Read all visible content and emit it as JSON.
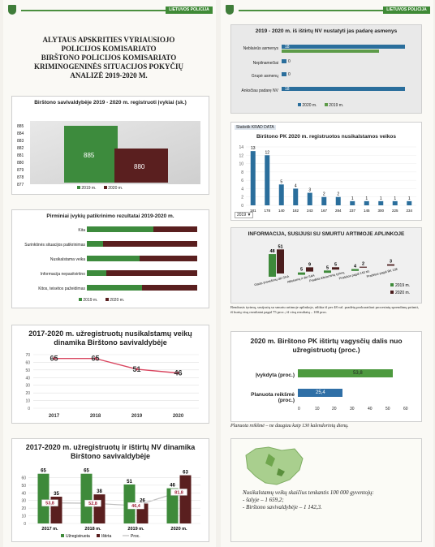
{
  "header": {
    "brand": "LIETUVOS POLICIJA"
  },
  "doc": {
    "title_lines": [
      "ALYTAUS APSKRITIES VYRIAUSIOJO",
      "POLICIJOS KOMISARIATO",
      "BIRŠTONO POLICIJOS KOMISARIATO",
      "KRIMINOGENINĖS SITUACIJOS POKYČIŲ",
      "ANALIZĖ 2019-2020 M."
    ]
  },
  "chart1": {
    "title": "Birštono savivaldybėje 2019 - 2020 m. registruoti įvykiai (sk.)",
    "yticks": [
      "885",
      "884",
      "883",
      "882",
      "881",
      "880",
      "879",
      "878",
      "877"
    ],
    "values": [
      885,
      880
    ],
    "labels": [
      "885",
      "880"
    ],
    "legend": [
      "2019 m.",
      "2020 m."
    ]
  },
  "chart2": {
    "title": "Pirminiai įvykių patikrinimo rezultatai 2019-2020 m.",
    "categories": [
      "Kita",
      "Surinktinės situacijos patikrinimas",
      "Nusikalstama veika",
      "Informacija nepasitvirtino",
      "Kitos, teisėtos pažeidimas"
    ],
    "legend": [
      "2019 m.",
      "2020 m."
    ]
  },
  "chart3": {
    "title_lines": [
      "2017-2020 m. užregistruotų nusikalstamų veikų",
      "dinamika Birštono savivaldybėje"
    ],
    "years": [
      "2017",
      "2018",
      "2019",
      "2020"
    ],
    "values": [
      65,
      65,
      51,
      46
    ],
    "labels": [
      "65",
      "65",
      "51",
      "46"
    ],
    "yticks": [
      "70",
      "60",
      "50",
      "40",
      "30",
      "20",
      "10",
      "0"
    ]
  },
  "chart4": {
    "title_lines": [
      "2017-2020 m. užregistruotų ir ištirtų NV dinamika",
      "Birštono savivaldybėje"
    ],
    "years": [
      "2017 m.",
      "2018 m.",
      "2019 m.",
      "2020 m."
    ],
    "registered": [
      65,
      65,
      51,
      46
    ],
    "solved": [
      35,
      38,
      26,
      63
    ],
    "pct": [
      "53,8",
      "52,8",
      "46,4",
      "81,8"
    ],
    "solved_labels": [
      "35",
      "38",
      "26",
      "63"
    ],
    "reg_labels": [
      "65",
      "65",
      "51",
      "46"
    ],
    "yticks": [
      "60",
      "50",
      "40",
      "30",
      "20",
      "10",
      "0"
    ],
    "legend": [
      "Užregistruota",
      "Ištirta",
      "Proc."
    ]
  },
  "chart5": {
    "title": "2019 - 2020 m. iš ištirtų NV nustatyti jas padarę asmenys",
    "categories": [
      "Neblaivūs asmenys",
      "Nepilnamečiai",
      "Grupė asmenų",
      "Anksčiau padarę NV"
    ],
    "v2020": [
      "18",
      "0",
      "0",
      "18"
    ],
    "v2019": [
      "17",
      "0",
      "0",
      "17"
    ],
    "legend": [
      "2020 m.",
      "2019 m."
    ]
  },
  "chart6": {
    "tag": "Statistik KRAD DATA",
    "title": "Birštono PK 2020 m. registruotos nusikalstamos veikos",
    "values": [
      13,
      12,
      5,
      4,
      3,
      2,
      2,
      1,
      1,
      1,
      1,
      1
    ],
    "labels": [
      "13",
      "12",
      "5",
      "4",
      "3",
      "2",
      "2",
      "1",
      "1",
      "1",
      "1",
      "1"
    ],
    "codes": [
      "181",
      "178",
      "140",
      "182",
      "243",
      "167",
      "284",
      "237",
      "145",
      "300",
      "225",
      "234"
    ],
    "yticks": [
      "14",
      "12",
      "10",
      "8",
      "6",
      "4",
      "2",
      "0"
    ],
    "footer": "2019 ▼"
  },
  "chart7": {
    "title": "INFORMACIJA, SUSIJUSI SU SMURTU ARTIMOJE APLINKOJE",
    "top": [
      "51",
      "9",
      "5",
      "2",
      "3"
    ],
    "bottom": [
      "48",
      "5",
      "5",
      "4",
      ""
    ],
    "cats": [
      "Gauta pranešimų dėl SAA",
      "Atliekamų ir dėl SAA",
      "Pradėta ikiteisminių tyrimų",
      "Pradėtos pagal 140 str.",
      "Pradėtos pagal BK 138"
    ],
    "legend": [
      "2019 m.",
      "2020 m."
    ],
    "note": "Bendrasis tyrimų, susijusių su smurtu artimoje aplinkoje, atlikta iš per 48 val. pradėtų prokuratūrai procesinių sprendimų priimti, iš kurių visų rezultatai pagal 75 proc.; iš visų rezultatų – 100 proc."
  },
  "chart8": {
    "title_lines": [
      "2020 m. Birštono PK ištirtų vagysčių dalis nuo",
      "užregistruotų (proc.)"
    ],
    "bars": [
      {
        "label": "Įvykdyta (proc.)",
        "value": 53.8,
        "text": "53,8"
      },
      {
        "label": "Planuota reikšmė (proc.)",
        "value": 25.4,
        "text": "25,4"
      }
    ],
    "xticks": [
      "0",
      "10",
      "20",
      "30",
      "40",
      "50",
      "60"
    ],
    "note": "Planuota reikšmė – ne daugiau kaip 130 kalendorinių dienų."
  },
  "map": {
    "caption_lines": [
      "Nusikalstamų veikų skaičius tenkantis 100 000 gyventojų:",
      "- šalyje – 1 659,2;",
      "- Birštono savivaldybėje – 1 142,3."
    ]
  }
}
